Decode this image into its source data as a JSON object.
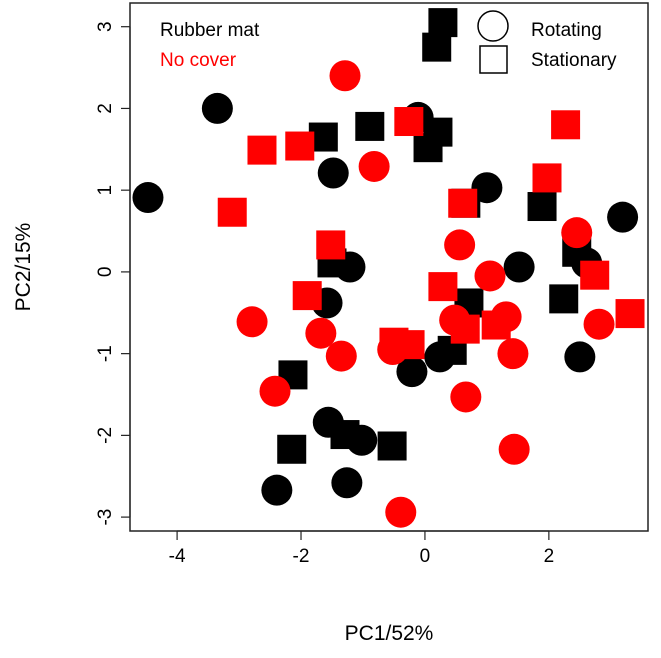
{
  "chart_data": {
    "type": "scatter",
    "xlabel": "PC1/52%",
    "ylabel": "PC2/15%",
    "xlim": [
      -4.76,
      3.6
    ],
    "ylim": [
      -3.17,
      3.29
    ],
    "xticks": [
      -4,
      -2,
      0,
      2
    ],
    "yticks": [
      -3,
      -2,
      -1,
      0,
      1,
      2,
      3
    ],
    "grid": false,
    "colors": {
      "rubber_mat": "#000000",
      "no_cover": "#ff0000"
    },
    "legend_color": {
      "placement": "top-left",
      "entries": [
        {
          "label": "Rubber mat",
          "color": "#000000"
        },
        {
          "label": "No cover",
          "color": "#ff0000"
        }
      ]
    },
    "legend_shape": {
      "placement": "top-right",
      "entries": [
        {
          "label": "Rotating",
          "shape": "circle"
        },
        {
          "label": "Stationary",
          "shape": "square"
        }
      ]
    },
    "series": [
      {
        "name": "Rubber mat",
        "shape": "circle",
        "color": "#000000",
        "points": [
          [
            -4.47,
            0.91
          ],
          [
            -3.35,
            2.0
          ],
          [
            -0.11,
            1.89
          ],
          [
            -1.48,
            1.21
          ],
          [
            1.0,
            1.03
          ],
          [
            3.19,
            0.67
          ],
          [
            -1.21,
            0.06
          ],
          [
            1.52,
            0.06
          ],
          [
            2.61,
            0.11
          ],
          [
            -1.58,
            -0.38
          ],
          [
            2.5,
            -1.04
          ],
          [
            -0.21,
            -1.22
          ],
          [
            0.24,
            -1.04
          ],
          [
            -1.56,
            -1.84
          ],
          [
            -1.02,
            -2.06
          ],
          [
            -2.39,
            -2.67
          ],
          [
            -1.26,
            -2.58
          ]
        ]
      },
      {
        "name": "Rubber mat",
        "shape": "square",
        "color": "#000000",
        "points": [
          [
            0.29,
            3.05
          ],
          [
            0.19,
            2.75
          ],
          [
            -1.64,
            1.65
          ],
          [
            -0.89,
            1.78
          ],
          [
            0.21,
            1.71
          ],
          [
            0.05,
            1.52
          ],
          [
            0.66,
            0.84
          ],
          [
            1.89,
            0.8
          ],
          [
            2.45,
            0.24
          ],
          [
            -1.5,
            0.11
          ],
          [
            0.71,
            -0.38
          ],
          [
            2.24,
            -0.33
          ],
          [
            0.44,
            -0.96
          ],
          [
            -2.13,
            -1.26
          ],
          [
            -2.15,
            -2.17
          ],
          [
            -1.29,
            -1.99
          ],
          [
            -0.53,
            -2.13
          ]
        ]
      },
      {
        "name": "No cover",
        "shape": "circle",
        "color": "#ff0000",
        "points": [
          [
            -1.29,
            2.4
          ],
          [
            -0.82,
            1.29
          ],
          [
            0.56,
            0.33
          ],
          [
            2.45,
            0.48
          ],
          [
            1.05,
            -0.05
          ],
          [
            -2.79,
            -0.61
          ],
          [
            -1.68,
            -0.75
          ],
          [
            -1.35,
            -1.03
          ],
          [
            -0.52,
            -0.95
          ],
          [
            0.48,
            -0.59
          ],
          [
            1.31,
            -0.55
          ],
          [
            1.42,
            -1.0
          ],
          [
            2.81,
            -0.64
          ],
          [
            -2.42,
            -1.46
          ],
          [
            0.66,
            -1.53
          ],
          [
            1.44,
            -2.17
          ],
          [
            -0.39,
            -2.94
          ]
        ]
      },
      {
        "name": "No cover",
        "shape": "square",
        "color": "#ff0000",
        "points": [
          [
            -2.63,
            1.49
          ],
          [
            -2.02,
            1.54
          ],
          [
            -0.26,
            1.84
          ],
          [
            2.27,
            1.8
          ],
          [
            1.97,
            1.15
          ],
          [
            -3.11,
            0.73
          ],
          [
            0.61,
            0.84
          ],
          [
            -1.52,
            0.33
          ],
          [
            -1.9,
            -0.29
          ],
          [
            2.74,
            -0.04
          ],
          [
            0.29,
            -0.18
          ],
          [
            3.31,
            -0.51
          ],
          [
            0.65,
            -0.7
          ],
          [
            1.15,
            -0.65
          ],
          [
            -0.5,
            -0.86
          ],
          [
            -0.24,
            -0.89
          ]
        ]
      }
    ]
  }
}
